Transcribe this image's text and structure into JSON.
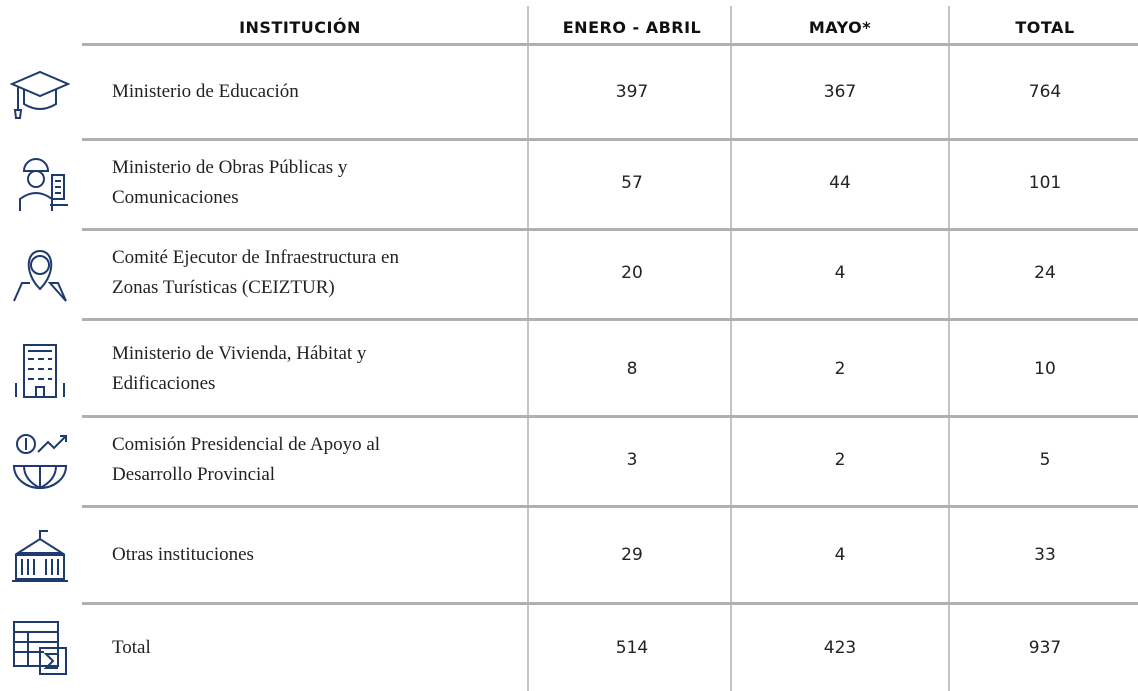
{
  "table": {
    "header": [
      "INSTITUCIÓN",
      "ENERO - ABRIL",
      "MAYO*",
      "TOTAL"
    ],
    "rows": [
      [
        [
          "Ministerio de Educación"
        ],
        397,
        367,
        764
      ],
      [
        [
          "Ministerio de Obras Públicas y",
          "Comunicaciones"
        ],
        57,
        44,
        101
      ],
      [
        [
          "Comité Ejecutor de Infraestructura en",
          "Zonas Turísticas (CEIZTUR)"
        ],
        20,
        4,
        24
      ],
      [
        [
          "Ministerio de Vivienda, Hábitat y",
          "Edificaciones"
        ],
        8,
        2,
        10
      ],
      [
        [
          "Comisión Presidencial de Apoyo al",
          "Desarrollo Provincial"
        ],
        3,
        2,
        5
      ],
      [
        [
          "Otras instituciones"
        ],
        29,
        4,
        33
      ],
      [
        [
          "Total"
        ],
        514,
        423,
        937
      ]
    ]
  }
}
